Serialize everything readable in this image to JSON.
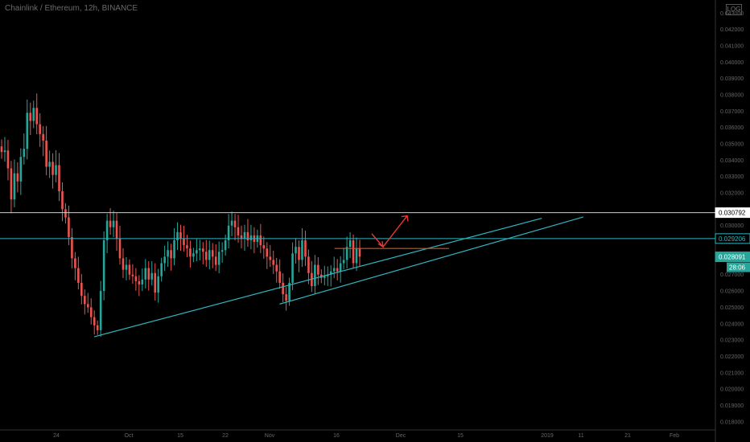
{
  "header": {
    "title": "Chainlink / Ethereum, 12h, BINANCE",
    "mode_label": "LOG"
  },
  "colors": {
    "background": "#000000",
    "up_candle": "#26a69a",
    "down_candle": "#ef5350",
    "trendline": "#2fb5c0",
    "resistance": "#cfcfcf",
    "support_level": "#2fb5c0",
    "target_arrow": "#e53935",
    "neckline": "#d4561f",
    "price_tag": "#26a69a"
  },
  "chart_data": {
    "type": "candlestick",
    "x_tick_labels": [
      "24",
      "Oct",
      "15",
      "22",
      "Nov",
      "16",
      "Dec",
      "15",
      "2019",
      "11",
      "21",
      "Feb"
    ],
    "y_tick_labels": [
      "0.018000",
      "0.019000",
      "0.020000",
      "0.021000",
      "0.022000",
      "0.023000",
      "0.024000",
      "0.025000",
      "0.026000",
      "0.027000",
      "0.028000",
      "0.029000",
      "0.030000",
      "0.031000",
      "0.032000",
      "0.033000",
      "0.034000",
      "0.035000",
      "0.036000",
      "0.037000",
      "0.038000",
      "0.039000",
      "0.040000",
      "0.041000",
      "0.042000",
      "0.043000"
    ],
    "ylim": [
      0.0175,
      0.0438
    ],
    "horizontal_levels": [
      {
        "label": "0.030792",
        "value": 0.030792,
        "role": "resistance"
      },
      {
        "label": "0.029206",
        "value": 0.029206,
        "role": "support_level"
      }
    ],
    "last_price": {
      "label": "0.028091",
      "value": 0.028091,
      "countdown": "28:06"
    },
    "trendlines": [
      {
        "from": [
          0,
          0.0232
        ],
        "to": [
          140,
          0.03045
        ]
      },
      {
        "from": [
          58,
          0.0252
        ],
        "to": [
          153,
          0.03053
        ]
      }
    ],
    "neckline": {
      "from": [
        89,
        0.0286
      ],
      "to": [
        113,
        0.0286
      ]
    },
    "target_arrows": [
      {
        "from": [
          98,
          0.0295
        ],
        "to": [
          102,
          0.0287
        ]
      },
      {
        "from": [
          102,
          0.0287
        ],
        "to": [
          108,
          0.0306
        ]
      }
    ],
    "closes": [
      0.0345,
      0.0346,
      0.0335,
      0.0316,
      0.0332,
      0.0327,
      0.0342,
      0.0347,
      0.0369,
      0.0364,
      0.0372,
      0.0362,
      0.0356,
      0.0352,
      0.0336,
      0.0339,
      0.0331,
      0.0337,
      0.0321,
      0.031,
      0.0305,
      0.0293,
      0.028,
      0.0274,
      0.0265,
      0.0257,
      0.0252,
      0.025,
      0.0244,
      0.0239,
      0.0236,
      0.026,
      0.0291,
      0.0303,
      0.0299,
      0.0303,
      0.0292,
      0.028,
      0.0273,
      0.0276,
      0.027,
      0.0269,
      0.0266,
      0.0264,
      0.0267,
      0.0274,
      0.0267,
      0.0271,
      0.0259,
      0.0269,
      0.0277,
      0.0281,
      0.0285,
      0.028,
      0.0291,
      0.0296,
      0.0292,
      0.0288,
      0.0286,
      0.0281,
      0.0283,
      0.0285,
      0.0286,
      0.0284,
      0.0279,
      0.0285,
      0.0281,
      0.0276,
      0.0284,
      0.0285,
      0.0291,
      0.03,
      0.0303,
      0.0299,
      0.0294,
      0.0292,
      0.0296,
      0.0291,
      0.0294,
      0.029,
      0.0294,
      0.0288,
      0.0286,
      0.0281,
      0.0279,
      0.0276,
      0.0272,
      0.0265,
      0.0258,
      0.0254,
      0.0265,
      0.0283,
      0.0287,
      0.0279,
      0.0291,
      0.0281,
      0.0271,
      0.0263,
      0.0276,
      0.027,
      0.0268,
      0.0269,
      0.027,
      0.0272,
      0.0274,
      0.0272,
      0.0277,
      0.0279,
      0.0287,
      0.0291,
      0.0277,
      0.0286,
      0.0281
    ]
  }
}
